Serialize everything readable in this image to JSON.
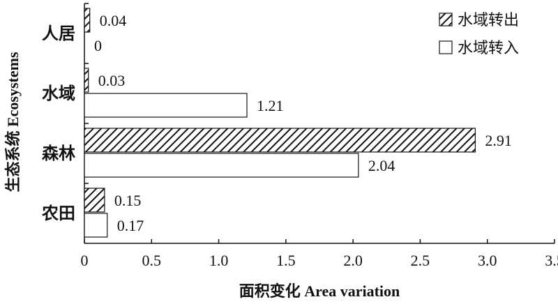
{
  "chart_data": {
    "type": "bar",
    "orientation": "horizontal",
    "categories": [
      "人居",
      "水域",
      "森林",
      "农田"
    ],
    "series": [
      {
        "name": "水域转出",
        "pattern": "hatched",
        "values": [
          0.04,
          0.03,
          2.91,
          0.15
        ],
        "labels": [
          "0.04",
          "0.03",
          "2.91",
          "0.15"
        ]
      },
      {
        "name": "水域转入",
        "pattern": "open",
        "values": [
          0,
          1.21,
          2.04,
          0.17
        ],
        "labels": [
          "0",
          "1.21",
          "2.04",
          "0.17"
        ]
      }
    ],
    "x_ticks": [
      "0",
      "0.5",
      "1.0",
      "1.5",
      "2.0",
      "2.5",
      "3.0",
      "3.5"
    ],
    "xlim": [
      0,
      3.5
    ],
    "xlabel": "面积变化 Area variation",
    "ylabel": "生态系统 Ecosystems",
    "legend_position": "top-right",
    "grid": false,
    "colors": {
      "stroke": "#111111",
      "fill_open": "#ffffff"
    }
  }
}
